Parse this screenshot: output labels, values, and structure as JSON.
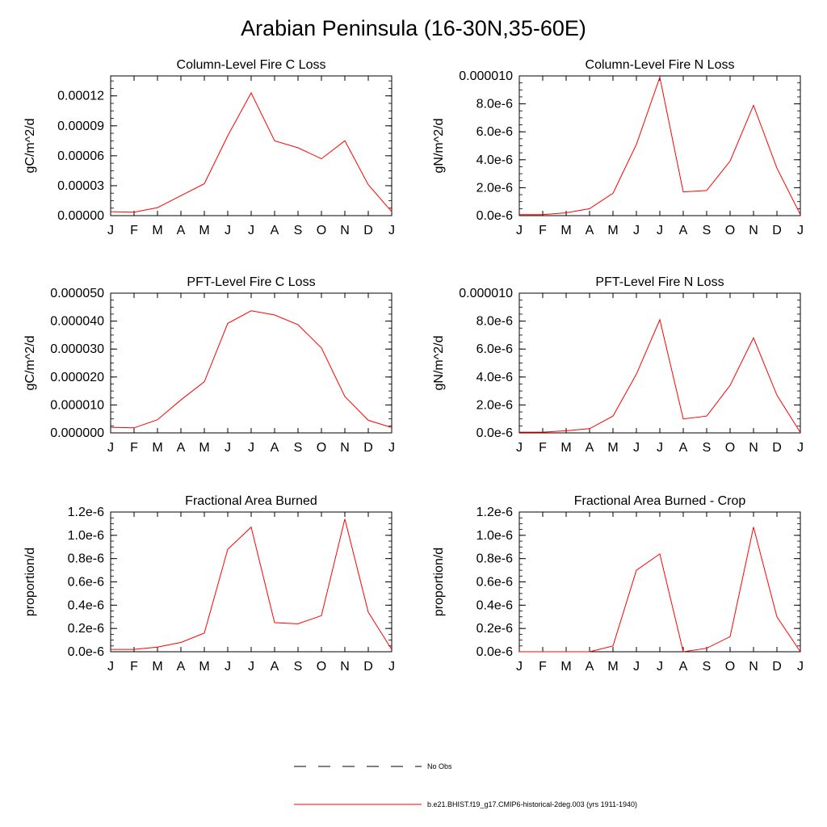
{
  "figure": {
    "title": "Arabian Peninsula (16-30N,35-60E)"
  },
  "legend": {
    "items": [
      {
        "label": "No Obs",
        "style": "dashed",
        "color": "#000000"
      },
      {
        "label": "b.e21.BHIST.f19_g17.CMIP6-historical-2deg.003 (yrs 1911-1940)",
        "style": "solid",
        "color": "#ff0000"
      }
    ]
  },
  "colors": {
    "series": "#ff0000",
    "axis": "#000000"
  },
  "chart_data": [
    {
      "type": "line",
      "title": "Column-Level Fire C Loss",
      "ylabel": "gC/m^2/d",
      "xlabel": "",
      "categories": [
        "J",
        "F",
        "M",
        "A",
        "M",
        "J",
        "J",
        "A",
        "S",
        "O",
        "N",
        "D",
        "J"
      ],
      "ylim": [
        0,
        0.00014
      ],
      "yticks": [
        0,
        3e-05,
        6e-05,
        9e-05,
        0.00012
      ],
      "ytick_labels": [
        "0.00000",
        "0.00003",
        "0.00006",
        "0.00009",
        "0.00012"
      ],
      "series": [
        {
          "values": [
            4e-06,
            3.5e-06,
            8e-06,
            2e-05,
            3.2e-05,
            8e-05,
            0.000123,
            7.5e-05,
            6.8e-05,
            5.7e-05,
            7.5e-05,
            3.1e-05,
            4e-06
          ]
        }
      ]
    },
    {
      "type": "line",
      "title": "Column-Level Fire N Loss",
      "ylabel": "gN/m^2/d",
      "xlabel": "",
      "categories": [
        "J",
        "F",
        "M",
        "A",
        "M",
        "J",
        "J",
        "A",
        "S",
        "O",
        "N",
        "D",
        "J"
      ],
      "ylim": [
        0,
        1e-05
      ],
      "yticks": [
        0,
        2e-06,
        4e-06,
        6e-06,
        8e-06,
        1e-05
      ],
      "ytick_labels": [
        "0.0e-6",
        "2.0e-6",
        "4.0e-6",
        "6.0e-6",
        "8.0e-6",
        "0.000010"
      ],
      "series": [
        {
          "values": [
            7e-08,
            7e-08,
            2e-07,
            5e-07,
            1.6e-06,
            5.1e-06,
            9.9e-06,
            1.7e-06,
            1.8e-06,
            3.9e-06,
            7.9e-06,
            3.4e-06,
            7e-08
          ]
        }
      ]
    },
    {
      "type": "line",
      "title": "PFT-Level Fire C Loss",
      "ylabel": "gC/m^2/d",
      "xlabel": "",
      "categories": [
        "J",
        "F",
        "M",
        "A",
        "M",
        "J",
        "J",
        "A",
        "S",
        "O",
        "N",
        "D",
        "J"
      ],
      "ylim": [
        0,
        5e-05
      ],
      "yticks": [
        0,
        1e-05,
        2e-05,
        3e-05,
        4e-05,
        5e-05
      ],
      "ytick_labels": [
        "0.000000",
        "0.000010",
        "0.000020",
        "0.000030",
        "0.000040",
        "0.000050"
      ],
      "series": [
        {
          "values": [
            2e-06,
            1.8e-06,
            4.7e-06,
            1.18e-05,
            1.83e-05,
            3.92e-05,
            4.37e-05,
            4.22e-05,
            3.87e-05,
            3.04e-05,
            1.3e-05,
            4.5e-06,
            1.9e-06
          ]
        }
      ]
    },
    {
      "type": "line",
      "title": "PFT-Level Fire N Loss",
      "ylabel": "gN/m^2/d",
      "xlabel": "",
      "categories": [
        "J",
        "F",
        "M",
        "A",
        "M",
        "J",
        "J",
        "A",
        "S",
        "O",
        "N",
        "D",
        "J"
      ],
      "ylim": [
        0,
        1e-05
      ],
      "yticks": [
        0,
        2e-06,
        4e-06,
        6e-06,
        8e-06,
        1e-05
      ],
      "ytick_labels": [
        "0.0e-6",
        "2.0e-6",
        "4.0e-6",
        "6.0e-6",
        "8.0e-6",
        "0.000010"
      ],
      "series": [
        {
          "values": [
            5e-08,
            5e-08,
            1.5e-07,
            3e-07,
            1.2e-06,
            4.2e-06,
            8.1e-06,
            1e-06,
            1.2e-06,
            3.4e-06,
            6.8e-06,
            2.7e-06,
            3e-08
          ]
        }
      ]
    },
    {
      "type": "line",
      "title": "Fractional Area Burned",
      "ylabel": "proportion/d",
      "xlabel": "",
      "categories": [
        "J",
        "F",
        "M",
        "A",
        "M",
        "J",
        "J",
        "A",
        "S",
        "O",
        "N",
        "D",
        "J"
      ],
      "ylim": [
        0,
        1.2e-06
      ],
      "yticks": [
        0,
        2e-07,
        4e-07,
        6e-07,
        8e-07,
        1e-06,
        1.2e-06
      ],
      "ytick_labels": [
        "0.0e-6",
        "0.2e-6",
        "0.4e-6",
        "0.6e-6",
        "0.8e-6",
        "1.0e-6",
        "1.2e-6"
      ],
      "series": [
        {
          "values": [
            2e-08,
            2e-08,
            4e-08,
            8e-08,
            1.6e-07,
            8.8e-07,
            1.07e-06,
            2.5e-07,
            2.4e-07,
            3.1e-07,
            1.14e-06,
            3.4e-07,
            2e-08
          ]
        }
      ]
    },
    {
      "type": "line",
      "title": "Fractional Area Burned - Crop",
      "ylabel": "proportion/d",
      "xlabel": "",
      "categories": [
        "J",
        "F",
        "M",
        "A",
        "M",
        "J",
        "J",
        "A",
        "S",
        "O",
        "N",
        "D",
        "J"
      ],
      "ylim": [
        0,
        1.2e-06
      ],
      "yticks": [
        0,
        2e-07,
        4e-07,
        6e-07,
        8e-07,
        1e-06,
        1.2e-06
      ],
      "ytick_labels": [
        "0.0e-6",
        "0.2e-6",
        "0.4e-6",
        "0.6e-6",
        "0.8e-6",
        "1.0e-6",
        "1.2e-6"
      ],
      "series": [
        {
          "values": [
            0,
            0,
            0,
            0,
            5e-08,
            7e-07,
            8.4e-07,
            0,
            3e-08,
            1.3e-07,
            1.07e-06,
            3e-07,
            0
          ]
        }
      ]
    }
  ]
}
